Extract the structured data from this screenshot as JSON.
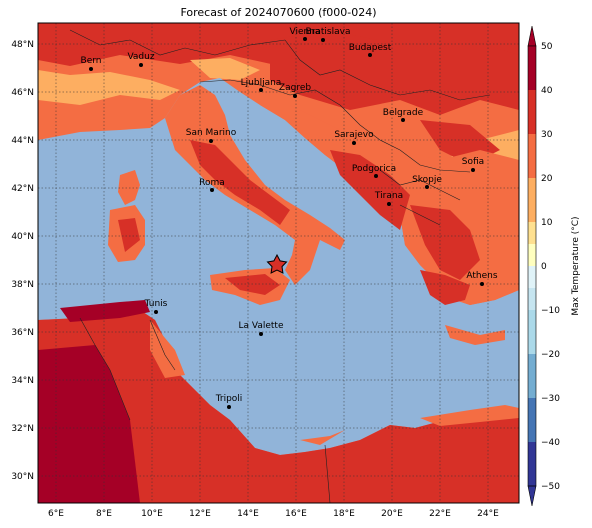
{
  "title": "Forecast of 2024070600 (f000-024)",
  "colorbar": {
    "label": "Max Temperature (°C)",
    "ticks": [
      "50",
      "40",
      "30",
      "20",
      "10",
      "0",
      "−10",
      "−20",
      "−30",
      "−40",
      "−50"
    ],
    "colors": [
      "#a50026",
      "#d73027",
      "#f46d43",
      "#fdae61",
      "#fee090",
      "#ffffbf",
      "#e0f3f8",
      "#abd9e9",
      "#74add1",
      "#4575b4",
      "#313695"
    ]
  },
  "map": {
    "lat_labels": [
      "48°N",
      "46°N",
      "44°N",
      "42°N",
      "40°N",
      "38°N",
      "36°N",
      "34°N",
      "32°N",
      "30°N"
    ],
    "lon_labels": [
      "6°E",
      "8°E",
      "10°E",
      "12°E",
      "14°E",
      "16°E",
      "18°E",
      "20°E",
      "22°E",
      "24°E"
    ],
    "colors": {
      "sea": "#91b4d9",
      "warm": "#f46d43",
      "hot": "#d73027",
      "mild": "#fdae61",
      "extreme": "#a50026"
    },
    "cities": [
      {
        "name": "Bern"
      },
      {
        "name": "Vaduz"
      },
      {
        "name": "Vienna"
      },
      {
        "name": "Bratislava"
      },
      {
        "name": "Budapest"
      },
      {
        "name": "Ljubljana"
      },
      {
        "name": "Zagreb"
      },
      {
        "name": "Belgrade"
      },
      {
        "name": "San Marino"
      },
      {
        "name": "Sarajevo"
      },
      {
        "name": "Sofia"
      },
      {
        "name": "Roma"
      },
      {
        "name": "Podgorica"
      },
      {
        "name": "Skopje"
      },
      {
        "name": "Tirana"
      },
      {
        "name": "Athens"
      },
      {
        "name": "Tunis"
      },
      {
        "name": "La Valette"
      },
      {
        "name": "Tripoli"
      }
    ],
    "marker_icon": "star-marker"
  }
}
